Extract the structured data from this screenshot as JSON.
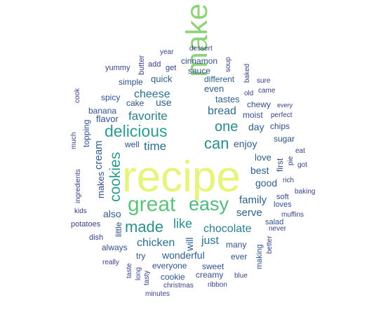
{
  "words": [
    {
      "t": "recipe",
      "c": "#E6F57A"
    },
    {
      "t": "make",
      "c": "#8FD27A"
    },
    {
      "t": "great",
      "c": "#5FC37B"
    },
    {
      "t": "easy",
      "c": "#52B982"
    },
    {
      "t": "delicious",
      "c": "#2C9C8E"
    },
    {
      "t": "cookies",
      "c": "#2C9C8E"
    },
    {
      "t": "can",
      "c": "#2A8E8E"
    },
    {
      "t": "made",
      "c": "#2A8E8E"
    },
    {
      "t": "like",
      "c": "#2A8E8E"
    },
    {
      "t": "one",
      "c": "#2A8A8E"
    },
    {
      "t": "favorite",
      "c": "#2A7E8E"
    },
    {
      "t": "chocolate",
      "c": "#2A7E8E"
    },
    {
      "t": "time",
      "c": "#2B6E8E"
    },
    {
      "t": "cheese",
      "c": "#2B6E8E"
    },
    {
      "t": "bread",
      "c": "#2B6E8E"
    },
    {
      "t": "chicken",
      "c": "#2B6E8E"
    },
    {
      "t": "just",
      "c": "#2B6E8E"
    },
    {
      "t": "cream",
      "c": "#2C5E8C"
    },
    {
      "t": "family",
      "c": "#2C5E8C"
    },
    {
      "t": "serve",
      "c": "#2C5E8C"
    },
    {
      "t": "enjoy",
      "c": "#2C5E8C"
    },
    {
      "t": "best",
      "c": "#2C5E8C"
    },
    {
      "t": "good",
      "c": "#2C5E8C"
    },
    {
      "t": "also",
      "c": "#2C5E8C"
    },
    {
      "t": "will",
      "c": "#2C5E8C"
    },
    {
      "t": "use",
      "c": "#2C5E8C"
    },
    {
      "t": "quick",
      "c": "#2C5E8C"
    },
    {
      "t": "different",
      "c": "#2C5E8C"
    },
    {
      "t": "even",
      "c": "#2C5E8C"
    },
    {
      "t": "tastes",
      "c": "#2C5E8C"
    },
    {
      "t": "day",
      "c": "#2C5E8C"
    },
    {
      "t": "love",
      "c": "#2C5E8C"
    },
    {
      "t": "wonderful",
      "c": "#2C5E8C"
    },
    {
      "t": "makes",
      "c": "#30508C"
    },
    {
      "t": "flavor",
      "c": "#30508C"
    },
    {
      "t": "sauce",
      "c": "#30508C"
    },
    {
      "t": "cinnamon",
      "c": "#30508C"
    },
    {
      "t": "simple",
      "c": "#30508C"
    },
    {
      "t": "cake",
      "c": "#30508C"
    },
    {
      "t": "banana",
      "c": "#30508C"
    },
    {
      "t": "spicy",
      "c": "#30508C"
    },
    {
      "t": "well",
      "c": "#30508C"
    },
    {
      "t": "moist",
      "c": "#30508C"
    },
    {
      "t": "chewy",
      "c": "#30508C"
    },
    {
      "t": "sugar",
      "c": "#30508C"
    },
    {
      "t": "chips",
      "c": "#30508C"
    },
    {
      "t": "first",
      "c": "#30508C"
    },
    {
      "t": "soft",
      "c": "#30508C"
    },
    {
      "t": "loves",
      "c": "#30508C"
    },
    {
      "t": "salad",
      "c": "#30508C"
    },
    {
      "t": "making",
      "c": "#30508C"
    },
    {
      "t": "many",
      "c": "#30508C"
    },
    {
      "t": "ever",
      "c": "#30508C"
    },
    {
      "t": "sweet",
      "c": "#30508C"
    },
    {
      "t": "creamy",
      "c": "#30508C"
    },
    {
      "t": "everyone",
      "c": "#30508C"
    },
    {
      "t": "cookie",
      "c": "#30508C"
    },
    {
      "t": "try",
      "c": "#30508C"
    },
    {
      "t": "always",
      "c": "#30508C"
    },
    {
      "t": "little",
      "c": "#30508C"
    },
    {
      "t": "topping",
      "c": "#30508C"
    },
    {
      "t": "get",
      "c": "#38418A"
    },
    {
      "t": "add",
      "c": "#38418A"
    },
    {
      "t": "yummy",
      "c": "#38418A"
    },
    {
      "t": "butter",
      "c": "#38418A"
    },
    {
      "t": "year",
      "c": "#38418A"
    },
    {
      "t": "dessert",
      "c": "#38418A"
    },
    {
      "t": "soup",
      "c": "#38418A"
    },
    {
      "t": "baked",
      "c": "#38418A"
    },
    {
      "t": "old",
      "c": "#38418A"
    },
    {
      "t": "sure",
      "c": "#38418A"
    },
    {
      "t": "came",
      "c": "#38418A"
    },
    {
      "t": "every",
      "c": "#38418A"
    },
    {
      "t": "perfect",
      "c": "#38418A"
    },
    {
      "t": "cook",
      "c": "#38418A"
    },
    {
      "t": "much",
      "c": "#38418A"
    },
    {
      "t": "ingredients",
      "c": "#38418A"
    },
    {
      "t": "kids",
      "c": "#38418A"
    },
    {
      "t": "potatoes",
      "c": "#38418A"
    },
    {
      "t": "dish",
      "c": "#38418A"
    },
    {
      "t": "really",
      "c": "#38418A"
    },
    {
      "t": "taste",
      "c": "#38418A"
    },
    {
      "t": "long",
      "c": "#38418A"
    },
    {
      "t": "tasty",
      "c": "#38418A"
    },
    {
      "t": "christmas",
      "c": "#38418A"
    },
    {
      "t": "minutes",
      "c": "#38418A"
    },
    {
      "t": "ribbon",
      "c": "#38418A"
    },
    {
      "t": "blue",
      "c": "#38418A"
    },
    {
      "t": "better",
      "c": "#38418A"
    },
    {
      "t": "never",
      "c": "#38418A"
    },
    {
      "t": "muffins",
      "c": "#38418A"
    },
    {
      "t": "baking",
      "c": "#38418A"
    },
    {
      "t": "rich",
      "c": "#38418A"
    },
    {
      "t": "got",
      "c": "#38418A"
    },
    {
      "t": "eat",
      "c": "#38418A"
    },
    {
      "t": "pie",
      "c": "#38418A"
    }
  ]
}
